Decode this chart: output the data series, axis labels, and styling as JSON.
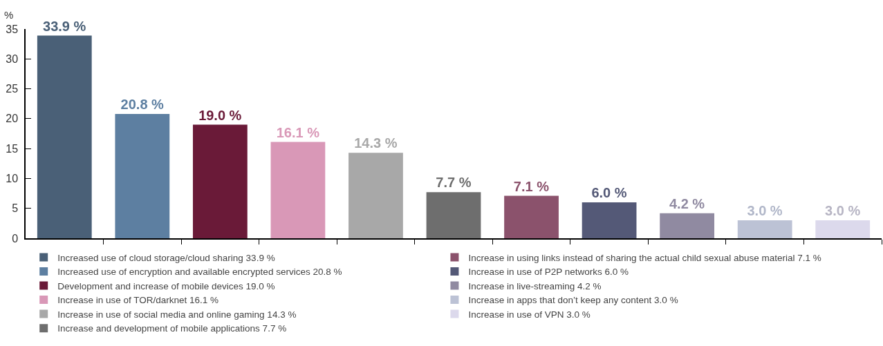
{
  "chart_data": {
    "type": "bar",
    "ylabel": "%",
    "categories": [
      null,
      null,
      null,
      null,
      null,
      null,
      null,
      null,
      null,
      null,
      null
    ],
    "ylim": [
      0,
      35
    ],
    "yticks": [
      0,
      5,
      10,
      15,
      20,
      25,
      30,
      35
    ],
    "legend": "bottom",
    "tick_labels": "y",
    "series": [
      {
        "name": "Increased use of cloud storage/cloud sharing 33.9 %",
        "color": "#4a6077",
        "values": [
          33.9,
          null,
          null,
          null,
          null,
          null,
          null,
          null,
          null,
          null,
          null
        ],
        "value_labels": [
          "33.9 %",
          null,
          null,
          null,
          null,
          null,
          null,
          null,
          null,
          null,
          null
        ]
      },
      {
        "name": "Increased use of encryption and available encrypted services 20.8 %",
        "color": "#5d7fa1",
        "values": [
          null,
          20.8,
          null,
          null,
          null,
          null,
          null,
          null,
          null,
          null,
          null
        ],
        "value_labels": [
          null,
          "20.8 %",
          null,
          null,
          null,
          null,
          null,
          null,
          null,
          null,
          null
        ]
      },
      {
        "name": "Development and increase of mobile devices 19.0 %",
        "color": "#6a1a38",
        "values": [
          null,
          null,
          19.0,
          null,
          null,
          null,
          null,
          null,
          null,
          null,
          null
        ],
        "value_labels": [
          null,
          null,
          "19.0 %",
          null,
          null,
          null,
          null,
          null,
          null,
          null,
          null
        ]
      },
      {
        "name": "Increase in use of TOR/darknet 16.1 %",
        "color": "#d998b7",
        "values": [
          null,
          null,
          null,
          16.1,
          null,
          null,
          null,
          null,
          null,
          null,
          null
        ],
        "value_labels": [
          null,
          null,
          null,
          "16.1 %",
          null,
          null,
          null,
          null,
          null,
          null,
          null
        ]
      },
      {
        "name": "Increase in use of social media and online gaming 14.3 %",
        "color": "#a8a8a8",
        "values": [
          null,
          null,
          null,
          null,
          14.3,
          null,
          null,
          null,
          null,
          null,
          null
        ],
        "value_labels": [
          null,
          null,
          null,
          null,
          "14.3 %",
          null,
          null,
          null,
          null,
          null,
          null
        ]
      },
      {
        "name": "Increase and development of mobile applications 7.7 %",
        "color": "#6e6e6e",
        "values": [
          null,
          null,
          null,
          null,
          null,
          7.7,
          null,
          null,
          null,
          null,
          null
        ],
        "value_labels": [
          null,
          null,
          null,
          null,
          null,
          "7.7 %",
          null,
          null,
          null,
          null,
          null
        ]
      },
      {
        "name": "Increase in using links instead of sharing the actual child sexual abuse material 7.1 %",
        "color": "#8b526c",
        "values": [
          null,
          null,
          null,
          null,
          null,
          null,
          7.1,
          null,
          null,
          null,
          null
        ],
        "value_labels": [
          null,
          null,
          null,
          null,
          null,
          null,
          "7.1 %",
          null,
          null,
          null,
          null
        ]
      },
      {
        "name": "Increase in use of P2P networks 6.0 %",
        "color": "#545977",
        "values": [
          null,
          null,
          null,
          null,
          null,
          null,
          null,
          6.0,
          null,
          null,
          null
        ],
        "value_labels": [
          null,
          null,
          null,
          null,
          null,
          null,
          null,
          "6.0 %",
          null,
          null,
          null
        ]
      },
      {
        "name": "Increase in live-streaming 4.2 %",
        "color": "#908aa1",
        "values": [
          null,
          null,
          null,
          null,
          null,
          null,
          null,
          null,
          4.2,
          null,
          null
        ],
        "value_labels": [
          null,
          null,
          null,
          null,
          null,
          null,
          null,
          null,
          "4.2 %",
          null,
          null
        ]
      },
      {
        "name": "Increase in apps that don’t keep any content 3.0 %",
        "color": "#bcc2d5",
        "values": [
          null,
          null,
          null,
          null,
          null,
          null,
          null,
          null,
          null,
          3.0,
          null
        ],
        "value_labels": [
          null,
          null,
          null,
          null,
          null,
          null,
          null,
          null,
          null,
          "3.0 %",
          null
        ]
      },
      {
        "name": "Increase in use of VPN 3.0 %",
        "color": "#dcd9ec",
        "values": [
          null,
          null,
          null,
          null,
          null,
          null,
          null,
          null,
          null,
          null,
          3.0
        ],
        "value_labels": [
          null,
          null,
          null,
          null,
          null,
          null,
          null,
          null,
          null,
          null,
          "3.0 %"
        ]
      }
    ]
  }
}
